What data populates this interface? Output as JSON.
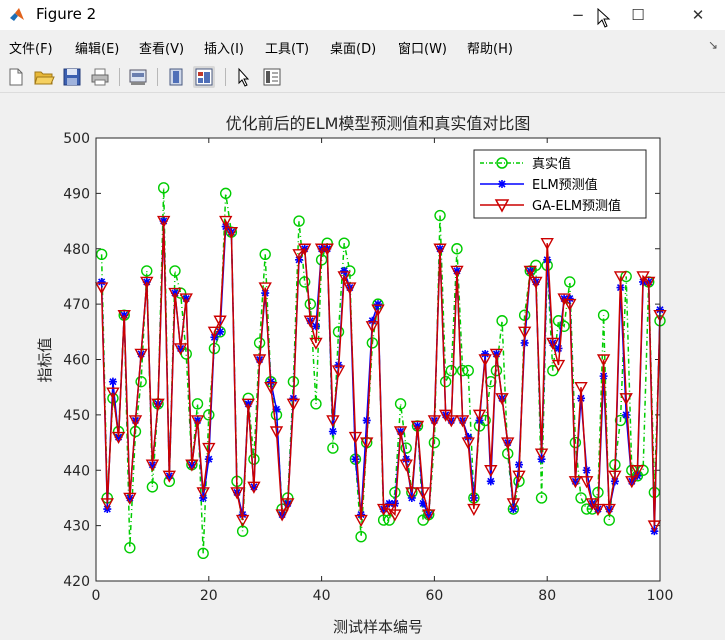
{
  "window": {
    "title": "Figure 2",
    "minimize": "−",
    "maximize": "☐",
    "close": "✕"
  },
  "menu": [
    "文件(F)",
    "编辑(E)",
    "查看(V)",
    "插入(I)",
    "工具(T)",
    "桌面(D)",
    "窗口(W)",
    "帮助(H)"
  ],
  "toolbar": [
    "new-file-icon",
    "open-folder-icon",
    "save-icon",
    "print-icon",
    "print-preview-icon",
    "hide-plot-tools-icon",
    "show-plot-tools-icon",
    "pointer-icon",
    "property-editor-icon"
  ],
  "colors": {
    "true": "#00cc00",
    "elm": "#0000ff",
    "ga": "#cc0000"
  },
  "chart_data": {
    "type": "line",
    "title": "优化前后的ELM模型预测值和真实值对比图",
    "xlabel": "测试样本编号",
    "ylabel": "指标值",
    "xlim": [
      0,
      100
    ],
    "ylim": [
      420,
      500
    ],
    "xticks": [
      0,
      20,
      40,
      60,
      80,
      100
    ],
    "yticks": [
      420,
      430,
      440,
      450,
      460,
      470,
      480,
      490,
      500
    ],
    "legend_position": "top-right",
    "x": [
      1,
      2,
      3,
      4,
      5,
      6,
      7,
      8,
      9,
      10,
      11,
      12,
      13,
      14,
      15,
      16,
      17,
      18,
      19,
      20,
      21,
      22,
      23,
      24,
      25,
      26,
      27,
      28,
      29,
      30,
      31,
      32,
      33,
      34,
      35,
      36,
      37,
      38,
      39,
      40,
      41,
      42,
      43,
      44,
      45,
      46,
      47,
      48,
      49,
      50,
      51,
      52,
      53,
      54,
      55,
      56,
      57,
      58,
      59,
      60,
      61,
      62,
      63,
      64,
      65,
      66,
      67,
      68,
      69,
      70,
      71,
      72,
      73,
      74,
      75,
      76,
      77,
      78,
      79,
      80,
      81,
      82,
      83,
      84,
      85,
      86,
      87,
      88,
      89,
      90,
      91,
      92,
      93,
      94,
      95,
      96,
      97,
      98,
      99,
      100
    ],
    "series": [
      {
        "name": "真实值",
        "values": [
          479,
          435,
          453,
          447,
          468,
          426,
          447,
          456,
          476,
          437,
          452,
          491,
          438,
          476,
          472,
          461,
          441,
          452,
          425,
          450,
          462,
          465,
          490,
          483,
          438,
          429,
          453,
          442,
          463,
          479,
          456,
          450,
          433,
          435,
          456,
          485,
          474,
          470,
          452,
          478,
          481,
          444,
          465,
          481,
          476,
          442,
          428,
          445,
          463,
          470,
          431,
          431,
          436,
          452,
          444,
          436,
          448,
          431,
          432,
          445,
          486,
          456,
          458,
          480,
          458,
          458,
          435,
          448,
          449,
          456,
          458,
          467,
          443,
          433,
          438,
          468,
          476,
          477,
          435,
          477,
          458,
          467,
          466,
          474,
          445,
          435,
          433,
          433,
          436,
          468,
          431,
          441,
          449,
          475,
          440,
          439,
          440,
          474,
          436,
          467
        ]
      },
      {
        "name": "ELM预测值",
        "values": [
          474,
          433,
          456,
          446,
          468,
          435,
          449,
          461,
          474,
          441,
          452,
          485,
          439,
          472,
          462,
          471,
          441,
          449,
          435,
          442,
          464,
          465,
          484,
          483,
          436,
          432,
          452,
          437,
          460,
          472,
          456,
          451,
          432,
          434,
          453,
          478,
          480,
          467,
          466,
          480,
          480,
          447,
          459,
          476,
          473,
          442,
          432,
          449,
          467,
          470,
          433,
          434,
          434,
          447,
          442,
          435,
          448,
          434,
          432,
          449,
          480,
          450,
          449,
          476,
          449,
          446,
          435,
          449,
          461,
          438,
          461,
          453,
          445,
          433,
          441,
          463,
          476,
          474,
          442,
          478,
          463,
          462,
          471,
          471,
          438,
          453,
          440,
          434,
          433,
          457,
          433,
          438,
          473,
          450,
          438,
          439,
          474,
          474,
          429,
          469
        ]
      },
      {
        "name": "GA-ELM预测值",
        "values": [
          473,
          434,
          454,
          446,
          468,
          435,
          449,
          461,
          474,
          441,
          452,
          485,
          439,
          472,
          462,
          471,
          441,
          449,
          436,
          444,
          465,
          467,
          485,
          483,
          436,
          431,
          452,
          437,
          460,
          473,
          455,
          447,
          432,
          434,
          452,
          479,
          480,
          467,
          463,
          480,
          480,
          449,
          458,
          475,
          473,
          446,
          431,
          445,
          466,
          469,
          433,
          433,
          432,
          447,
          441,
          436,
          448,
          436,
          432,
          449,
          480,
          450,
          449,
          476,
          449,
          445,
          433,
          450,
          460,
          440,
          461,
          453,
          445,
          434,
          439,
          465,
          476,
          474,
          443,
          481,
          463,
          459,
          471,
          470,
          438,
          455,
          438,
          434,
          433,
          460,
          433,
          439,
          475,
          453,
          438,
          440,
          475,
          474,
          430,
          468
        ]
      }
    ]
  }
}
